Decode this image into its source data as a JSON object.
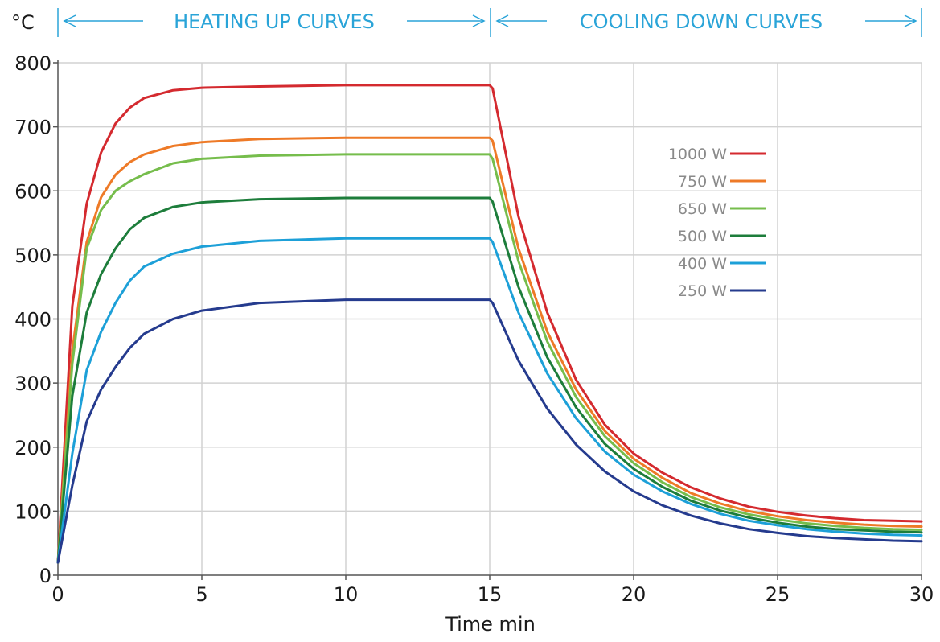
{
  "chart_data": {
    "type": "line",
    "y_unit": "°C",
    "xlabel": "Time min",
    "xlim": [
      0,
      30
    ],
    "ylim": [
      0,
      800
    ],
    "x_ticks": [
      "0",
      "5",
      "10",
      "15",
      "20",
      "25",
      "30"
    ],
    "y_ticks": [
      "0",
      "100",
      "200",
      "300",
      "400",
      "500",
      "600",
      "700",
      "800"
    ],
    "grid": true,
    "legend_position": "top-right",
    "section_labels": {
      "heating": "HEATING UP CURVES",
      "cooling": "COOLING DOWN CURVES"
    },
    "accent_color": "#2aa4d8",
    "series": [
      {
        "name": "1000 W",
        "color": "#d42a2f",
        "x": [
          0,
          0.5,
          1,
          1.5,
          2,
          2.5,
          3,
          4,
          5,
          7,
          10,
          15,
          15.1,
          16,
          17,
          18,
          19,
          20,
          21,
          22,
          23,
          24,
          25,
          26,
          27,
          28,
          29,
          30
        ],
        "y": [
          20,
          420,
          580,
          660,
          705,
          730,
          745,
          757,
          761,
          763,
          765,
          765,
          760,
          560,
          410,
          305,
          235,
          190,
          160,
          137,
          120,
          107,
          99,
          93,
          89,
          86,
          85,
          84
        ]
      },
      {
        "name": "750 W",
        "color": "#ee7a27",
        "x": [
          0,
          0.5,
          1,
          1.5,
          2,
          2.5,
          3,
          4,
          5,
          7,
          10,
          15,
          15.1,
          16,
          17,
          18,
          19,
          20,
          21,
          22,
          23,
          24,
          25,
          26,
          27,
          28,
          29,
          30
        ],
        "y": [
          20,
          350,
          520,
          590,
          625,
          645,
          657,
          670,
          676,
          681,
          683,
          683,
          678,
          510,
          380,
          290,
          225,
          182,
          152,
          128,
          112,
          100,
          92,
          86,
          82,
          79,
          77,
          76
        ]
      },
      {
        "name": "650 W",
        "color": "#76bd4c",
        "x": [
          0,
          0.5,
          1,
          1.5,
          2,
          2.5,
          3,
          4,
          5,
          7,
          10,
          15,
          15.1,
          16,
          17,
          18,
          19,
          20,
          21,
          22,
          23,
          24,
          25,
          26,
          27,
          28,
          29,
          30
        ],
        "y": [
          20,
          330,
          510,
          570,
          600,
          615,
          626,
          643,
          650,
          655,
          657,
          657,
          650,
          490,
          365,
          278,
          217,
          175,
          145,
          122,
          106,
          95,
          87,
          81,
          77,
          74,
          72,
          71
        ]
      },
      {
        "name": "500 W",
        "color": "#1d7d3b",
        "x": [
          0,
          0.5,
          1,
          1.5,
          2,
          2.5,
          3,
          4,
          5,
          7,
          10,
          15,
          15.1,
          16,
          17,
          18,
          19,
          20,
          21,
          22,
          23,
          24,
          25,
          26,
          27,
          28,
          29,
          30
        ],
        "y": [
          20,
          280,
          410,
          470,
          510,
          540,
          558,
          575,
          582,
          587,
          589,
          589,
          583,
          450,
          340,
          262,
          205,
          166,
          138,
          116,
          101,
          90,
          82,
          76,
          72,
          70,
          68,
          67
        ]
      },
      {
        "name": "400 W",
        "color": "#1da0d8",
        "x": [
          0,
          0.5,
          1,
          1.5,
          2,
          2.5,
          3,
          4,
          5,
          7,
          10,
          15,
          15.1,
          16,
          17,
          18,
          19,
          20,
          21,
          22,
          23,
          24,
          25,
          26,
          27,
          28,
          29,
          30
        ],
        "y": [
          20,
          190,
          320,
          380,
          425,
          460,
          482,
          502,
          513,
          522,
          526,
          526,
          520,
          410,
          315,
          245,
          193,
          157,
          131,
          111,
          96,
          85,
          78,
          72,
          68,
          65,
          63,
          62
        ]
      },
      {
        "name": "250 W",
        "color": "#253b8e",
        "x": [
          0,
          0.5,
          1,
          1.5,
          2,
          2.5,
          3,
          4,
          5,
          7,
          10,
          15,
          15.1,
          16,
          17,
          18,
          19,
          20,
          21,
          22,
          23,
          24,
          25,
          26,
          27,
          28,
          29,
          30
        ],
        "y": [
          20,
          140,
          240,
          290,
          325,
          355,
          377,
          400,
          413,
          425,
          430,
          430,
          425,
          335,
          260,
          204,
          162,
          131,
          109,
          93,
          81,
          72,
          66,
          61,
          58,
          56,
          54,
          53
        ]
      }
    ]
  }
}
